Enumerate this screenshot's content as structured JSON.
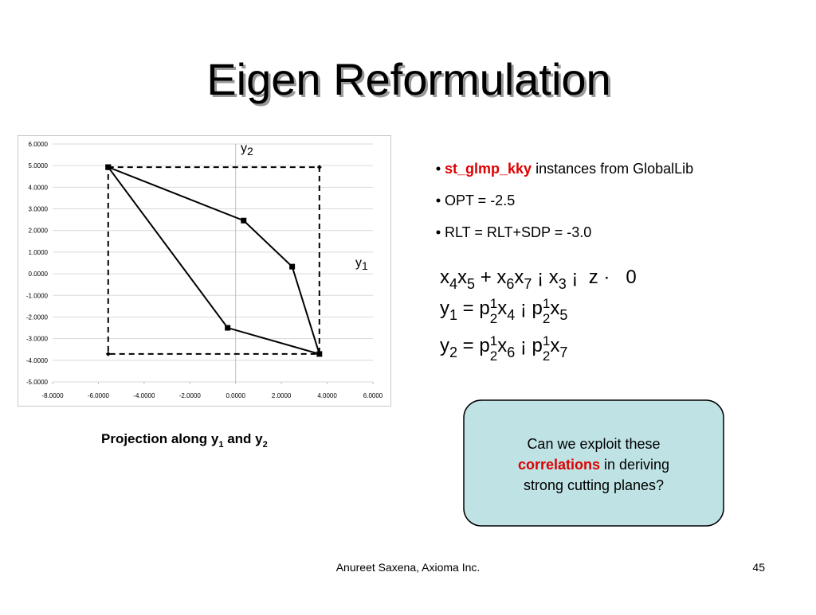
{
  "title": "Eigen Reformulation",
  "chart_data": {
    "type": "line",
    "xlim": [
      -8,
      6
    ],
    "xticks": [
      {
        "value": -8,
        "label": "-8.0000"
      },
      {
        "value": -6,
        "label": "-6.0000"
      },
      {
        "value": -4,
        "label": "-4.0000"
      },
      {
        "value": -2,
        "label": "-2.0000"
      },
      {
        "value": 0,
        "label": "0.0000"
      },
      {
        "value": 2,
        "label": "2.0000"
      },
      {
        "value": 4,
        "label": "4.0000"
      },
      {
        "value": 6,
        "label": "6.0000"
      }
    ],
    "ylim": [
      -5,
      6
    ],
    "yticks": [
      {
        "value": 6,
        "label": "6.0000"
      },
      {
        "value": 5,
        "label": "5.0000"
      },
      {
        "value": 4,
        "label": "4.0000"
      },
      {
        "value": 3,
        "label": "3.0000"
      },
      {
        "value": 2,
        "label": "2.0000"
      },
      {
        "value": 1,
        "label": "1.0000"
      },
      {
        "value": 0,
        "label": "0.0000"
      },
      {
        "value": -1,
        "label": "-1.0000"
      },
      {
        "value": -2,
        "label": "-2.0000"
      },
      {
        "value": -3,
        "label": "-3.0000"
      },
      {
        "value": -4,
        "label": "-4.0000"
      },
      {
        "value": -5,
        "label": "-5.0000"
      }
    ],
    "grid": true,
    "series": [
      {
        "color": "#000000",
        "dashed": false,
        "marker": "square",
        "x": [
          -5.57,
          0.35,
          2.47,
          3.66,
          -0.35,
          -5.57
        ],
        "values": [
          4.93,
          2.46,
          0.33,
          -3.71,
          -2.5,
          4.93
        ]
      },
      {
        "color": "#000000",
        "dashed": true,
        "marker": "diamond",
        "x": [
          -5.57,
          3.66,
          3.66,
          -5.57,
          -5.57
        ],
        "values": [
          4.93,
          4.93,
          -3.71,
          -3.71,
          4.93
        ]
      }
    ],
    "annotations": [
      {
        "text": "y",
        "sub": "2"
      },
      {
        "text": "y",
        "sub": "1"
      }
    ]
  },
  "caption": {
    "text": "Projection along y",
    "sub1": "1",
    "middle": " and y",
    "sub2": "2"
  },
  "bullets": [
    {
      "bold": "st_glmp_kky",
      "text": " instances from GlobalLib"
    },
    {
      "text": "OPT = -2.5"
    },
    {
      "text": "RLT = RLT+SDP = -3.0"
    }
  ],
  "equations": [
    [
      {
        "t": "x"
      },
      {
        "t": "4",
        "pos": "sub"
      },
      {
        "t": "x"
      },
      {
        "t": "5",
        "pos": "sub"
      },
      {
        "t": " + "
      },
      {
        "t": "x"
      },
      {
        "t": "6",
        "pos": "sub"
      },
      {
        "t": "x"
      },
      {
        "t": "7",
        "pos": "sub"
      },
      {
        "t": " ¡ "
      },
      {
        "t": "x"
      },
      {
        "t": "3",
        "pos": "sub"
      },
      {
        "t": " ¡ "
      },
      {
        "t": " z · "
      },
      {
        "t": "  0"
      }
    ],
    [
      {
        "t": "y"
      },
      {
        "t": "1",
        "pos": "sub"
      },
      {
        "t": " = "
      },
      {
        "t": "p"
      },
      {
        "t": "1",
        "pos": "sup"
      },
      {
        "t": "2",
        "pos": "den"
      },
      {
        "t": "x"
      },
      {
        "t": "4",
        "pos": "sub"
      },
      {
        "t": " ¡ "
      },
      {
        "t": "p"
      },
      {
        "t": "1",
        "pos": "sup"
      },
      {
        "t": "2",
        "pos": "den"
      },
      {
        "t": "x"
      },
      {
        "t": "5",
        "pos": "sub"
      }
    ],
    [
      {
        "t": "y"
      },
      {
        "t": "2",
        "pos": "sub"
      },
      {
        "t": " = "
      },
      {
        "t": "p"
      },
      {
        "t": "1",
        "pos": "sup"
      },
      {
        "t": "2",
        "pos": "den"
      },
      {
        "t": "x"
      },
      {
        "t": "6",
        "pos": "sub"
      },
      {
        "t": " ¡ "
      },
      {
        "t": "p"
      },
      {
        "t": "1",
        "pos": "sup"
      },
      {
        "t": "2",
        "pos": "den"
      },
      {
        "t": "x"
      },
      {
        "t": "7",
        "pos": "sub"
      }
    ]
  ],
  "callout": {
    "line1": "Can we exploit these",
    "highlight": "correlations",
    "rest": " in deriving",
    "line3": "strong cutting planes?"
  },
  "footer": {
    "text": "Anureet Saxena, Axioma Inc.",
    "page": "45"
  }
}
